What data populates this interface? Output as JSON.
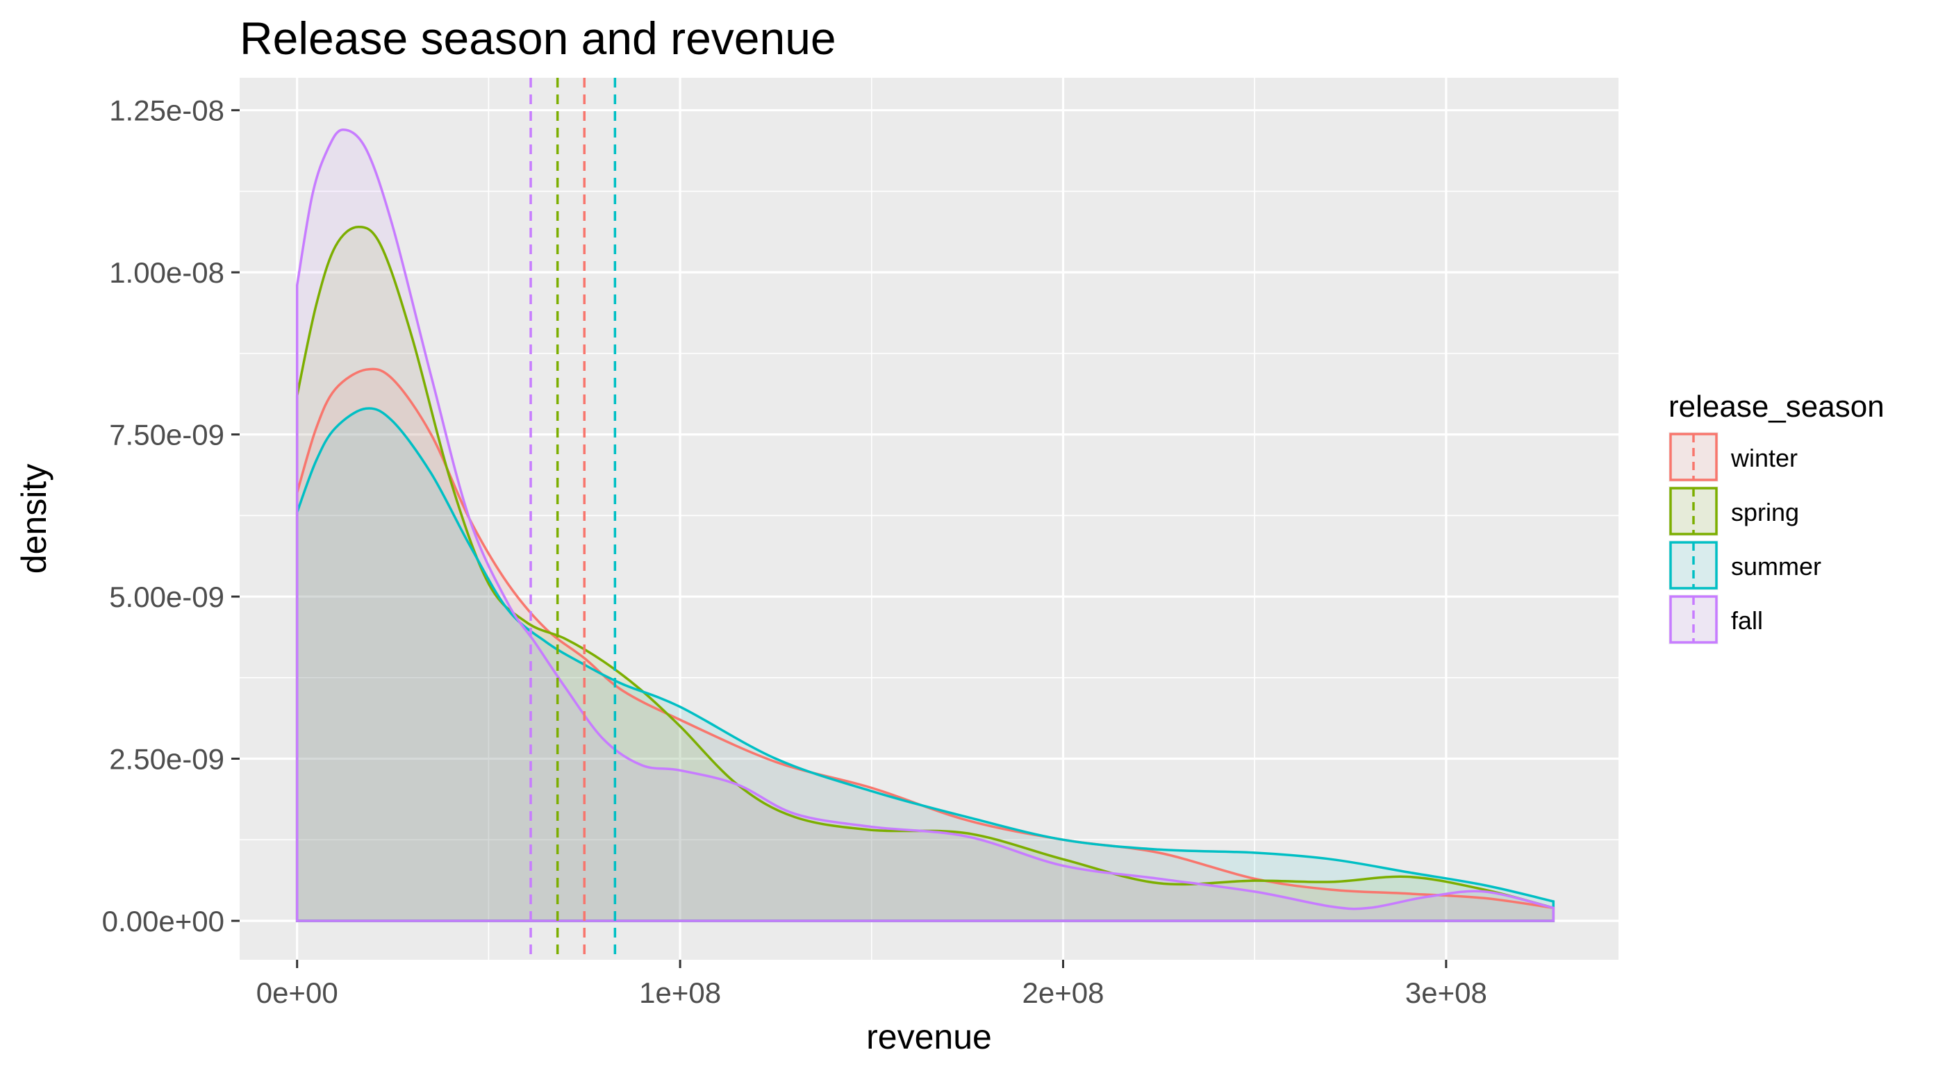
{
  "chart_data": {
    "type": "area",
    "subtype": "density",
    "title": "Release season and revenue",
    "xlabel": "revenue",
    "ylabel": "density",
    "xlim": [
      -15000000,
      345000000
    ],
    "ylim": [
      -6e-10,
      1.3e-08
    ],
    "x_ticks": [
      0,
      100000000,
      200000000,
      300000000
    ],
    "x_tick_labels": [
      "0e+00",
      "1e+08",
      "2e+08",
      "3e+08"
    ],
    "y_ticks": [
      0,
      2.5e-09,
      5e-09,
      7.5e-09,
      1e-08,
      1.25e-08
    ],
    "y_tick_labels": [
      "0.00e+00",
      "2.50e-09",
      "5.00e-09",
      "7.50e-09",
      "1.00e-08",
      "1.25e-08"
    ],
    "grid": true,
    "legend": {
      "title": "release_season",
      "position": "right"
    },
    "series": [
      {
        "name": "winter",
        "color": "#F8766D",
        "mean": 75000000,
        "points": [
          [
            0,
            6.6e-09
          ],
          [
            5000000,
            7.6e-09
          ],
          [
            10000000,
            8.2e-09
          ],
          [
            18000000,
            8.5e-09
          ],
          [
            25000000,
            8.35e-09
          ],
          [
            35000000,
            7.5e-09
          ],
          [
            45000000,
            6.2e-09
          ],
          [
            55000000,
            5.2e-09
          ],
          [
            65000000,
            4.5e-09
          ],
          [
            75000000,
            4.05e-09
          ],
          [
            85000000,
            3.55e-09
          ],
          [
            100000000,
            3.1e-09
          ],
          [
            125000000,
            2.45e-09
          ],
          [
            150000000,
            2.05e-09
          ],
          [
            175000000,
            1.55e-09
          ],
          [
            200000000,
            1.25e-09
          ],
          [
            225000000,
            1.05e-09
          ],
          [
            250000000,
            6.5e-10
          ],
          [
            270000000,
            4.8e-10
          ],
          [
            290000000,
            4.2e-10
          ],
          [
            310000000,
            3.5e-10
          ],
          [
            328000000,
            2e-10
          ]
        ]
      },
      {
        "name": "spring",
        "color": "#7CAE00",
        "mean": 68000000,
        "points": [
          [
            0,
            8.1e-09
          ],
          [
            5000000,
            9.5e-09
          ],
          [
            10000000,
            1.04e-08
          ],
          [
            16000000,
            1.07e-08
          ],
          [
            22000000,
            1.04e-08
          ],
          [
            30000000,
            9e-09
          ],
          [
            40000000,
            6.8e-09
          ],
          [
            50000000,
            5.2e-09
          ],
          [
            60000000,
            4.6e-09
          ],
          [
            70000000,
            4.35e-09
          ],
          [
            80000000,
            4e-09
          ],
          [
            90000000,
            3.55e-09
          ],
          [
            100000000,
            3e-09
          ],
          [
            115000000,
            2.1e-09
          ],
          [
            130000000,
            1.6e-09
          ],
          [
            150000000,
            1.4e-09
          ],
          [
            175000000,
            1.35e-09
          ],
          [
            200000000,
            9.5e-10
          ],
          [
            225000000,
            5.8e-10
          ],
          [
            250000000,
            6.2e-10
          ],
          [
            270000000,
            6e-10
          ],
          [
            290000000,
            6.8e-10
          ],
          [
            310000000,
            4.8e-10
          ],
          [
            328000000,
            2e-10
          ]
        ]
      },
      {
        "name": "summer",
        "color": "#00BFC4",
        "mean": 83000000,
        "points": [
          [
            0,
            6.3e-09
          ],
          [
            5000000,
            7.1e-09
          ],
          [
            10000000,
            7.6e-09
          ],
          [
            18000000,
            7.9e-09
          ],
          [
            25000000,
            7.7e-09
          ],
          [
            35000000,
            6.9e-09
          ],
          [
            45000000,
            5.8e-09
          ],
          [
            55000000,
            4.8e-09
          ],
          [
            65000000,
            4.3e-09
          ],
          [
            75000000,
            3.95e-09
          ],
          [
            85000000,
            3.65e-09
          ],
          [
            100000000,
            3.3e-09
          ],
          [
            125000000,
            2.5e-09
          ],
          [
            150000000,
            2e-09
          ],
          [
            175000000,
            1.6e-09
          ],
          [
            200000000,
            1.25e-09
          ],
          [
            225000000,
            1.1e-09
          ],
          [
            250000000,
            1.05e-09
          ],
          [
            270000000,
            9.5e-10
          ],
          [
            290000000,
            7.5e-10
          ],
          [
            310000000,
            5.5e-10
          ],
          [
            328000000,
            3e-10
          ]
        ]
      },
      {
        "name": "fall",
        "color": "#C77CFF",
        "mean": 61000000,
        "points": [
          [
            0,
            9.8e-09
          ],
          [
            4000000,
            1.12e-08
          ],
          [
            8000000,
            1.19e-08
          ],
          [
            12000000,
            1.22e-08
          ],
          [
            18000000,
            1.19e-08
          ],
          [
            25000000,
            1.07e-08
          ],
          [
            35000000,
            8.4e-09
          ],
          [
            45000000,
            6.2e-09
          ],
          [
            55000000,
            4.9e-09
          ],
          [
            62000000,
            4.3e-09
          ],
          [
            70000000,
            3.6e-09
          ],
          [
            80000000,
            2.8e-09
          ],
          [
            90000000,
            2.4e-09
          ],
          [
            100000000,
            2.32e-09
          ],
          [
            115000000,
            2.1e-09
          ],
          [
            130000000,
            1.65e-09
          ],
          [
            150000000,
            1.45e-09
          ],
          [
            175000000,
            1.3e-09
          ],
          [
            200000000,
            8.5e-10
          ],
          [
            225000000,
            6.5e-10
          ],
          [
            250000000,
            4.5e-10
          ],
          [
            270000000,
            2.2e-10
          ],
          [
            280000000,
            2e-10
          ],
          [
            295000000,
            3.7e-10
          ],
          [
            310000000,
            4.5e-10
          ],
          [
            328000000,
            2e-10
          ]
        ]
      }
    ]
  }
}
